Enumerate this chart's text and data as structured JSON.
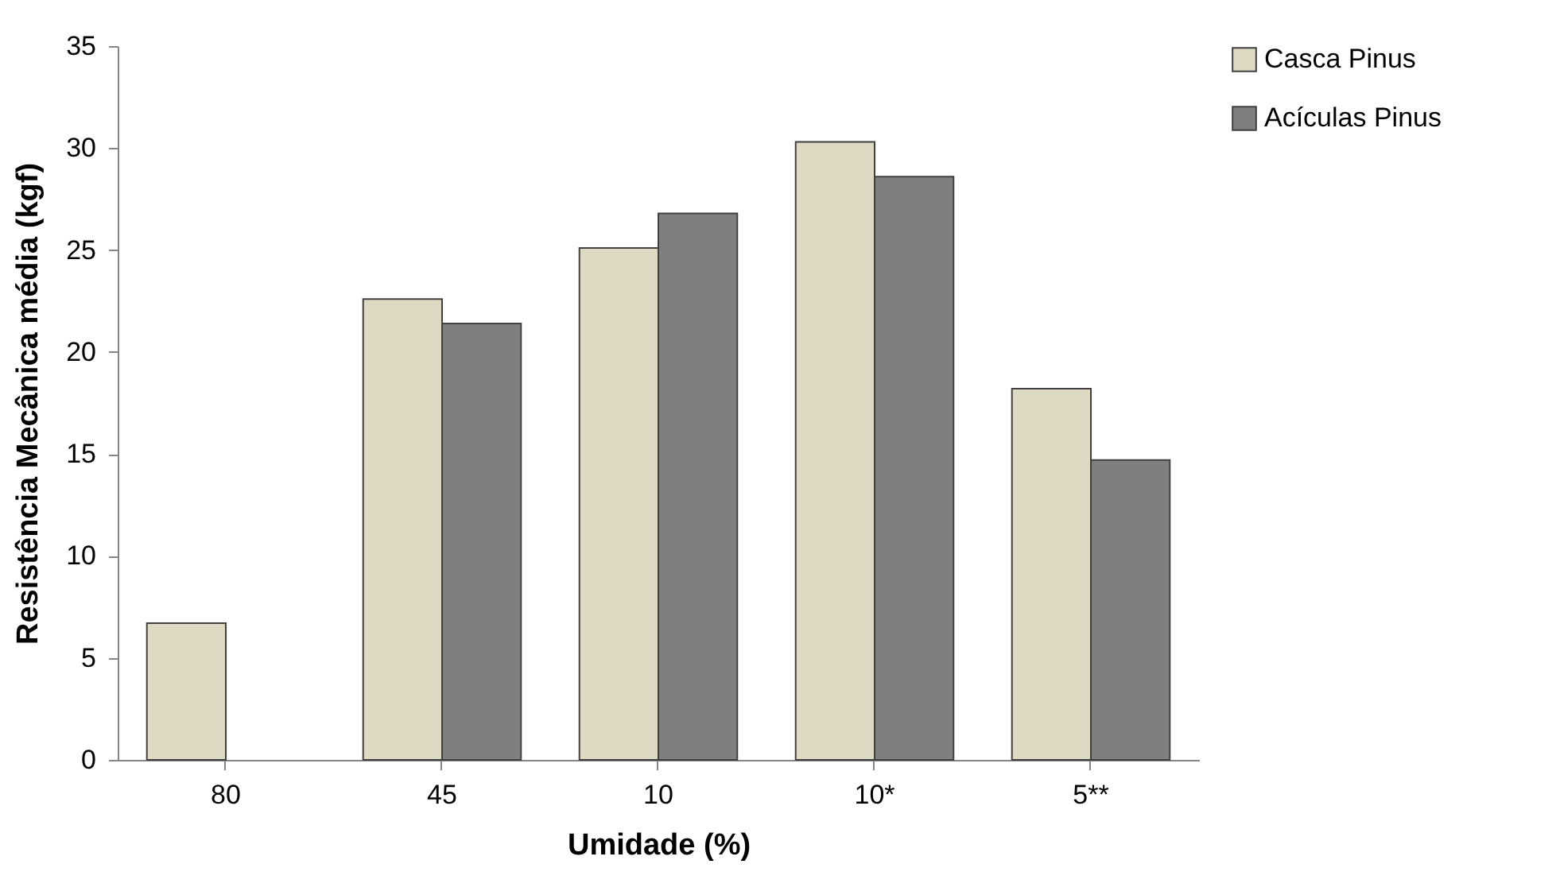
{
  "chart_data": {
    "type": "bar",
    "xlabel": "Umidade (%)",
    "ylabel": "Resistência Mecânica média (kgf)",
    "categories": [
      "80",
      "45",
      "10",
      "10*",
      "5**"
    ],
    "series": [
      {
        "name": "Casca Pinus",
        "color": "#ddd9c3",
        "values": [
          6.7,
          22.6,
          25.1,
          30.3,
          18.2
        ]
      },
      {
        "name": "Acículas Pinus",
        "color": "#7f7f7f",
        "values": [
          null,
          21.4,
          26.8,
          28.6,
          14.7
        ]
      }
    ],
    "ylim": [
      0,
      35
    ],
    "yticks": [
      0,
      5,
      10,
      15,
      20,
      25,
      30,
      35
    ],
    "grid": false,
    "legend": "right"
  }
}
